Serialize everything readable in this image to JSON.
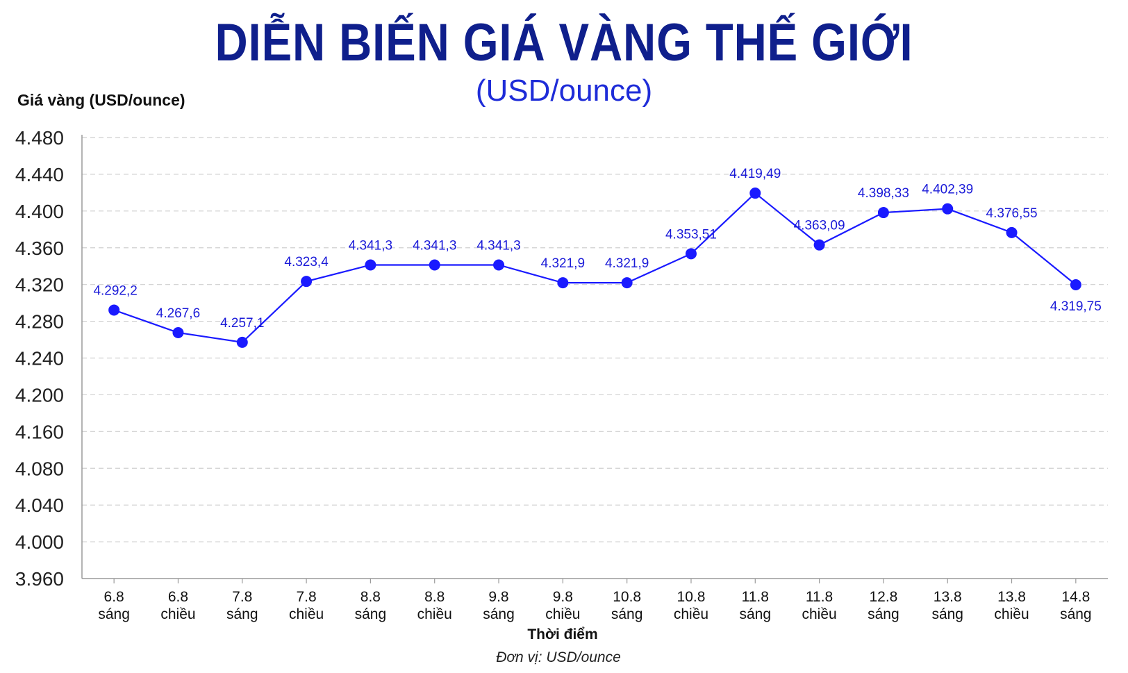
{
  "chart_data": {
    "type": "line",
    "title": "DIỄN BIẾN GIÁ VÀNG THẾ GIỚI",
    "subtitle": "(USD/ounce)",
    "ylabel": "Giá vàng (USD/ounce)",
    "xlabel": "Thời điểm",
    "unit_note": "Đơn vị: USD/ounce",
    "y_ticks": [
      "4.480",
      "4.440",
      "4.400",
      "4.360",
      "4.320",
      "4.280",
      "4.240",
      "4.200",
      "4.160",
      "4.080",
      "4.040",
      "4.000",
      "3.960"
    ],
    "categories": [
      [
        "6.8",
        "sáng"
      ],
      [
        "6.8",
        "chiều"
      ],
      [
        "7.8",
        "sáng"
      ],
      [
        "7.8",
        "chiều"
      ],
      [
        "8.8",
        "sáng"
      ],
      [
        "8.8",
        "chiều"
      ],
      [
        "9.8",
        "sáng"
      ],
      [
        "9.8",
        "chiều"
      ],
      [
        "10.8",
        "sáng"
      ],
      [
        "10.8",
        "chiều"
      ],
      [
        "11.8",
        "sáng"
      ],
      [
        "11.8",
        "chiều"
      ],
      [
        "12.8",
        "sáng"
      ],
      [
        "13.8",
        "sáng"
      ],
      [
        "13.8",
        "chiều"
      ],
      [
        "14.8",
        "sáng"
      ]
    ],
    "values": [
      4292.2,
      4267.6,
      4257.1,
      4323.4,
      4341.3,
      4341.3,
      4341.3,
      4321.9,
      4321.9,
      4353.51,
      4419.49,
      4363.09,
      4398.33,
      4402.39,
      4376.55,
      4319.75
    ],
    "data_labels": [
      "4.292,2",
      "4.267,6",
      "4.257,1",
      "4.323,4",
      "4.341,3",
      "4.341,3",
      "4.341,3",
      "4.321,9",
      "4.321,9",
      "4.353,51",
      "4.419,49",
      "4.363,09",
      "4.398,33",
      "4.402,39",
      "4.376,55",
      "4.319,75"
    ],
    "grid": true,
    "line_color": "#1a1aff",
    "title_color": "#0f1f8c"
  }
}
